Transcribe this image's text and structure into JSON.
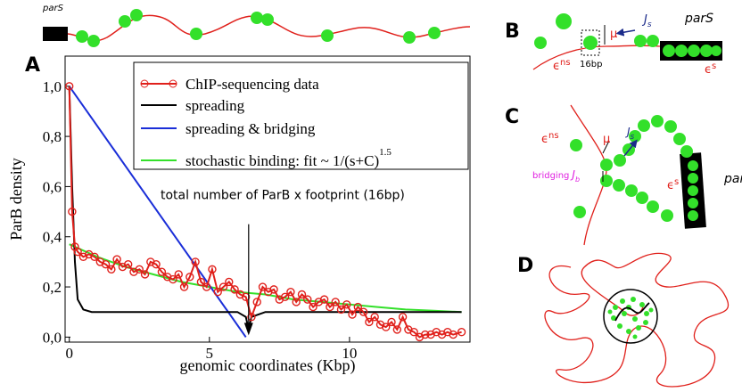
{
  "chart_data": {
    "type": "line",
    "xlabel": "genomic coordinates (Kbp)",
    "ylabel": "ParB density",
    "xlim": [
      -0.15,
      14.3
    ],
    "ylim": [
      -0.02,
      1.12
    ],
    "xticks": [
      0,
      5,
      10
    ],
    "yticks": [
      {
        "value": 0,
        "label": "0,0"
      },
      {
        "value": 0.2,
        "label": "0,2"
      },
      {
        "value": 0.4,
        "label": "0,4"
      },
      {
        "value": 0.6,
        "label": "0,6"
      },
      {
        "value": 0.8,
        "label": "0,8"
      },
      {
        "value": 1.0,
        "label": "1,0"
      }
    ],
    "legend": "top-right",
    "fit_exponent": "1.5",
    "annotation": {
      "text": "total number of ParB x footprint (16bp)",
      "x": 6.4,
      "y": 0.45
    },
    "series": [
      {
        "name": "ChIP-sequencing data",
        "color": "#e0201b",
        "marker": "circle",
        "x": [
          0,
          0.1,
          0.2,
          0.3,
          0.5,
          0.7,
          0.9,
          1.1,
          1.3,
          1.5,
          1.7,
          1.9,
          2.1,
          2.3,
          2.5,
          2.7,
          2.9,
          3.1,
          3.3,
          3.5,
          3.7,
          3.9,
          4.1,
          4.3,
          4.5,
          4.7,
          4.9,
          5.1,
          5.3,
          5.5,
          5.7,
          5.9,
          6.1,
          6.3,
          6.5,
          6.7,
          6.9,
          7.1,
          7.3,
          7.5,
          7.7,
          7.9,
          8.1,
          8.3,
          8.5,
          8.7,
          8.9,
          9.1,
          9.3,
          9.5,
          9.7,
          9.9,
          10.1,
          10.3,
          10.5,
          10.7,
          10.9,
          11.1,
          11.3,
          11.5,
          11.7,
          11.9,
          12.1,
          12.3,
          12.5,
          12.7,
          12.9,
          13.1,
          13.3,
          13.5,
          13.7,
          14.0
        ],
        "values": [
          1.0,
          0.5,
          0.36,
          0.34,
          0.32,
          0.33,
          0.32,
          0.3,
          0.29,
          0.27,
          0.31,
          0.28,
          0.29,
          0.26,
          0.27,
          0.25,
          0.3,
          0.29,
          0.26,
          0.24,
          0.23,
          0.25,
          0.2,
          0.24,
          0.3,
          0.22,
          0.2,
          0.27,
          0.18,
          0.2,
          0.22,
          0.19,
          0.17,
          0.16,
          0.08,
          0.14,
          0.2,
          0.18,
          0.19,
          0.15,
          0.16,
          0.18,
          0.14,
          0.17,
          0.15,
          0.12,
          0.14,
          0.15,
          0.12,
          0.14,
          0.11,
          0.13,
          0.09,
          0.12,
          0.1,
          0.06,
          0.08,
          0.05,
          0.04,
          0.06,
          0.03,
          0.08,
          0.03,
          0.02,
          0.0,
          0.01,
          0.01,
          0.02,
          0.01,
          0.02,
          0.01,
          0.02
        ]
      },
      {
        "name": "spreading",
        "color": "#000000",
        "x": [
          0,
          0.1,
          0.2,
          0.3,
          0.5,
          0.8,
          1,
          2,
          3,
          4,
          5,
          6,
          6.3,
          6.4,
          6.5,
          7,
          8,
          9,
          10,
          11,
          12,
          13,
          14
        ],
        "values": [
          1.0,
          0.6,
          0.3,
          0.15,
          0.11,
          0.1,
          0.1,
          0.1,
          0.1,
          0.1,
          0.1,
          0.1,
          0.08,
          0.03,
          0.08,
          0.1,
          0.1,
          0.1,
          0.1,
          0.1,
          0.1,
          0.1,
          0.1
        ]
      },
      {
        "name": "spreading & bridging",
        "color": "#1a2ed8",
        "x": [
          0,
          6.3
        ],
        "values": [
          1.0,
          0.0
        ]
      },
      {
        "name": "stochastic binding:  fit ~ 1/(s+C)",
        "color": "#33e02a",
        "x": [
          0,
          1,
          2,
          3,
          4,
          5,
          6,
          7,
          8,
          9,
          10,
          11,
          12,
          13,
          14
        ],
        "values": [
          0.37,
          0.32,
          0.28,
          0.25,
          0.22,
          0.2,
          0.18,
          0.17,
          0.15,
          0.14,
          0.13,
          0.12,
          0.11,
          0.105,
          0.1
        ]
      }
    ]
  },
  "panel_labels": [
    "A",
    "B",
    "C",
    "D"
  ],
  "top_strip": {
    "label": "parS"
  },
  "panel_b": {
    "pars": "parS",
    "eps_ns": [
      "ϵ",
      "ns"
    ],
    "eps_s": [
      "ϵ",
      "s"
    ],
    "mu": "μ",
    "js": [
      "J",
      "s"
    ],
    "footprint": "16bp"
  },
  "panel_c": {
    "pars": "parS",
    "eps_ns": [
      "ϵ",
      "ns"
    ],
    "eps_s": [
      "ϵ",
      "s"
    ],
    "mu": "μ",
    "js": [
      "J",
      "s"
    ],
    "bridging": "bridging",
    "jb": [
      "J",
      "b"
    ]
  }
}
